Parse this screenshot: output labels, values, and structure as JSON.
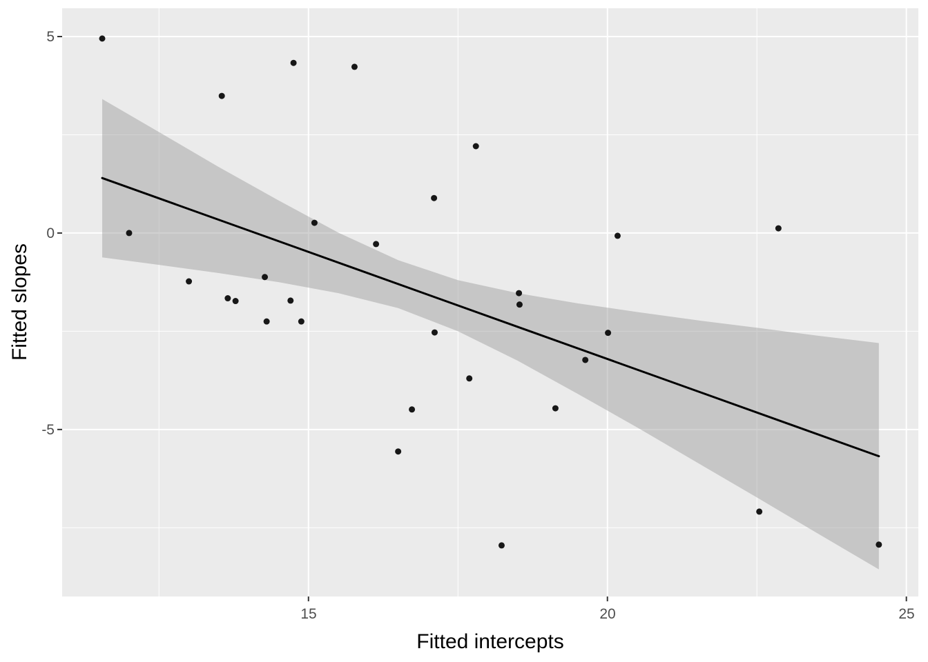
{
  "figure": {
    "background": "#FFFFFF",
    "panel_background": "#EBEBEB",
    "grid_color": "#FFFFFF",
    "point_color": "#000000",
    "line_color": "#000000",
    "ribbon_color": "#999999",
    "tick_label_color": "#4D4D4D",
    "axis_title_color": "#000000"
  },
  "chart_data": {
    "type": "scatter",
    "title": "",
    "xlabel": "Fitted intercepts",
    "ylabel": "Fitted slopes",
    "xlim": [
      10.88,
      25.2
    ],
    "ylim": [
      -9.25,
      5.72
    ],
    "x_ticks": [
      15,
      20,
      25
    ],
    "y_ticks": [
      -5,
      0,
      5
    ],
    "x_minor_ticks": [
      12.5,
      17.5,
      22.5
    ],
    "y_minor_ticks": [
      -7.5,
      -2.5,
      2.5
    ],
    "grid": "on",
    "legend": "none",
    "points": [
      [
        11.55,
        4.95
      ],
      [
        14.75,
        4.33
      ],
      [
        15.77,
        4.23
      ],
      [
        13.55,
        3.49
      ],
      [
        17.8,
        2.21
      ],
      [
        17.1,
        0.89
      ],
      [
        12.0,
        0.0
      ],
      [
        15.1,
        0.26
      ],
      [
        22.86,
        0.12
      ],
      [
        20.17,
        -0.07
      ],
      [
        16.13,
        -0.28
      ],
      [
        13.0,
        -1.23
      ],
      [
        14.27,
        -1.12
      ],
      [
        13.65,
        -1.66
      ],
      [
        13.78,
        -1.73
      ],
      [
        14.7,
        -1.72
      ],
      [
        18.52,
        -1.53
      ],
      [
        18.53,
        -1.82
      ],
      [
        14.3,
        -2.25
      ],
      [
        14.88,
        -2.25
      ],
      [
        17.11,
        -2.53
      ],
      [
        20.01,
        -2.54
      ],
      [
        19.63,
        -3.23
      ],
      [
        17.69,
        -3.7
      ],
      [
        16.73,
        -4.49
      ],
      [
        19.13,
        -4.46
      ],
      [
        16.5,
        -5.56
      ],
      [
        22.54,
        -7.09
      ],
      [
        18.23,
        -7.95
      ],
      [
        24.54,
        -7.93
      ]
    ],
    "regression_line": {
      "x1": 11.55,
      "y1": 1.4,
      "x2": 24.54,
      "y2": -5.68
    },
    "confidence_band": [
      {
        "x": 11.55,
        "lo": -0.62,
        "hi": 3.41
      },
      {
        "x": 12.5,
        "lo": -0.81,
        "hi": 2.57
      },
      {
        "x": 13.5,
        "lo": -1.02,
        "hi": 1.68
      },
      {
        "x": 14.5,
        "lo": -1.25,
        "hi": 0.83
      },
      {
        "x": 15.5,
        "lo": -1.53,
        "hi": 0.01
      },
      {
        "x": 16.5,
        "lo": -1.91,
        "hi": -0.69
      },
      {
        "x": 17.5,
        "lo": -2.5,
        "hi": -1.2
      },
      {
        "x": 18.5,
        "lo": -3.25,
        "hi": -1.53
      },
      {
        "x": 19.5,
        "lo": -4.09,
        "hi": -1.79
      },
      {
        "x": 20.5,
        "lo": -4.95,
        "hi": -2.01
      },
      {
        "x": 21.5,
        "lo": -5.84,
        "hi": -2.22
      },
      {
        "x": 22.5,
        "lo": -6.73,
        "hi": -2.41
      },
      {
        "x": 23.5,
        "lo": -7.63,
        "hi": -2.61
      },
      {
        "x": 24.54,
        "lo": -8.56,
        "hi": -2.8
      }
    ]
  }
}
